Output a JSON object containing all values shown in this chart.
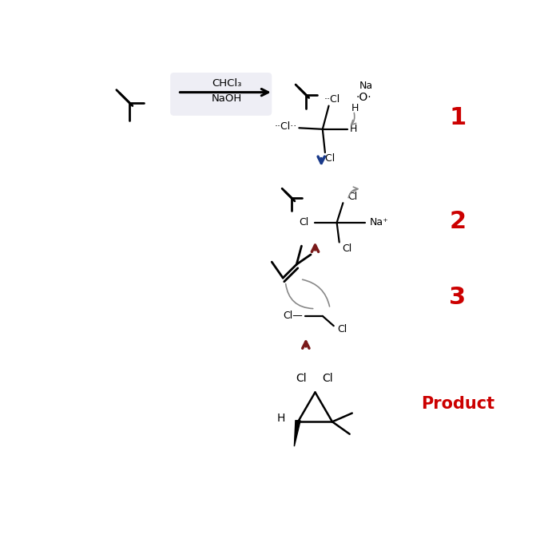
{
  "bg_color": "#ffffff",
  "red_color": "#cc0000",
  "dark_blue": "#1a3a8a",
  "dark_red": "#7a1a1a",
  "black": "#000000",
  "gray": "#888888",
  "label_1": "1",
  "label_2": "2",
  "label_3": "3",
  "label_product": "Product",
  "reagent1": "CHCl₃",
  "reagent2": "NaOH"
}
